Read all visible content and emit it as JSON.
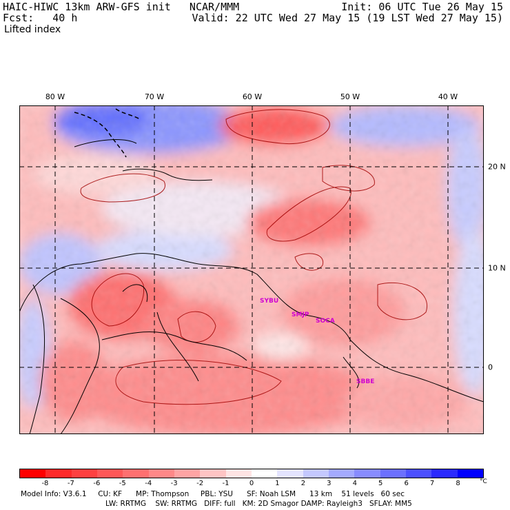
{
  "header": {
    "model": "HAIC-HIWC 13km ARW-GFS init   NCAR/MMM",
    "forecast": "Fcst:   40 h",
    "field": "Lifted index",
    "init": "Init: 06 UTC Tue 26 May 15",
    "valid": "Valid: 22 UTC Wed 27 May 15 (19 LST Wed 27 May 15)"
  },
  "axes": {
    "longitudes": [
      "80 W",
      "70 W",
      "60 W",
      "50 W",
      "40 W"
    ],
    "latitudes": [
      "20 N",
      "10 N",
      "0"
    ]
  },
  "stations": [
    "SYBU",
    "SMJP",
    "SOCA",
    "SBBE"
  ],
  "colorbar": {
    "labels": [
      "-8",
      "-7",
      "-6",
      "-5",
      "-4",
      "-3",
      "-2",
      "-1",
      "0",
      "1",
      "2",
      "3",
      "4",
      "5",
      "6",
      "7",
      "8"
    ],
    "unit": "°C",
    "colors": [
      "#ff0000",
      "#ff2a2a",
      "#ff4040",
      "#ff5858",
      "#ff7070",
      "#ff8888",
      "#ffa4a4",
      "#ffc4c4",
      "#ffe4e4",
      "#ffffff",
      "#e4e4ff",
      "#c4c8ff",
      "#a4aaff",
      "#888cff",
      "#6c70ff",
      "#4c50ff",
      "#2a2aff",
      "#0000ff"
    ]
  },
  "footer": {
    "line1": "Model Info: V3.6.1     CU: KF      MP: Thompson     PBL: YSU      SF: Noah LSM      13 km    51 levels   60 sec",
    "line2": "LW: RRTMG    SW: RRTMG   DIFF: full   KM: 2D Smagor DAMP: Rayleigh3   SFLAY: MM5"
  }
}
